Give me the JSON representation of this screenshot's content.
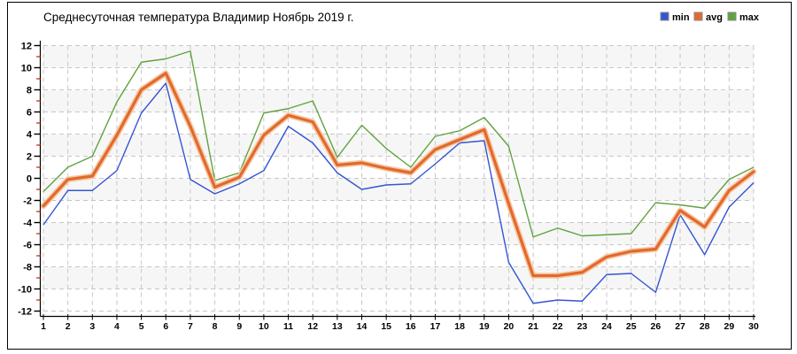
{
  "title": "Среднесуточная температура Владимир  Ноябрь 2019 г.",
  "legend": [
    {
      "label": "min",
      "color": "#3455d4"
    },
    {
      "label": "avg",
      "color": "#e2692d"
    },
    {
      "label": "max",
      "color": "#5fa33e"
    }
  ],
  "chart_data": {
    "type": "line",
    "title": "Среднесуточная температура Владимир  Ноябрь 2019 г.",
    "xlabel": "",
    "ylabel": "",
    "x": [
      1,
      2,
      3,
      4,
      5,
      6,
      7,
      8,
      9,
      10,
      11,
      12,
      13,
      14,
      15,
      16,
      17,
      18,
      19,
      20,
      21,
      22,
      23,
      24,
      25,
      26,
      27,
      28,
      29,
      30
    ],
    "series": [
      {
        "name": "min",
        "color": "#3455d4",
        "values": [
          -4.2,
          -1.1,
          -1.1,
          0.7,
          5.9,
          8.6,
          -0.1,
          -1.4,
          -0.5,
          0.7,
          4.7,
          3.2,
          0.5,
          -1.0,
          -0.6,
          -0.5,
          1.3,
          3.2,
          3.4,
          -7.6,
          -11.3,
          -11.0,
          -11.1,
          -8.7,
          -8.6,
          -10.3,
          -3.3,
          -6.9,
          -2.6,
          -0.4
        ]
      },
      {
        "name": "avg",
        "color": "#e2692d",
        "values": [
          -2.5,
          -0.1,
          0.2,
          3.9,
          8.0,
          9.5,
          4.7,
          -0.8,
          0.1,
          3.9,
          5.7,
          5.1,
          1.2,
          1.4,
          0.9,
          0.5,
          2.6,
          3.5,
          4.4,
          -2.3,
          -8.8,
          -8.8,
          -8.5,
          -7.1,
          -6.6,
          -6.4,
          -2.9,
          -4.4,
          -1.1,
          0.6
        ]
      },
      {
        "name": "max",
        "color": "#5fa33e",
        "values": [
          -1.2,
          1.0,
          2.0,
          6.9,
          10.5,
          10.8,
          11.5,
          -0.2,
          0.5,
          5.9,
          6.3,
          7.0,
          1.9,
          4.8,
          2.7,
          1.0,
          3.8,
          4.3,
          5.5,
          2.9,
          -5.3,
          -4.5,
          -5.2,
          -5.1,
          -5.0,
          -2.2,
          -2.4,
          -2.7,
          -0.1,
          1.0
        ]
      }
    ],
    "ylim": [
      -12,
      12
    ],
    "ytick_step": 2,
    "y_minor_tick_step": 1,
    "grid": true,
    "legend_position": "top-right",
    "styles": {
      "grid_color": "#c7c7c7",
      "band_color": "#f6f6f6",
      "minor_tick_color": "#cc2200",
      "avg_halo_color": "#f5c9a4",
      "axis_color": "#000000"
    }
  }
}
